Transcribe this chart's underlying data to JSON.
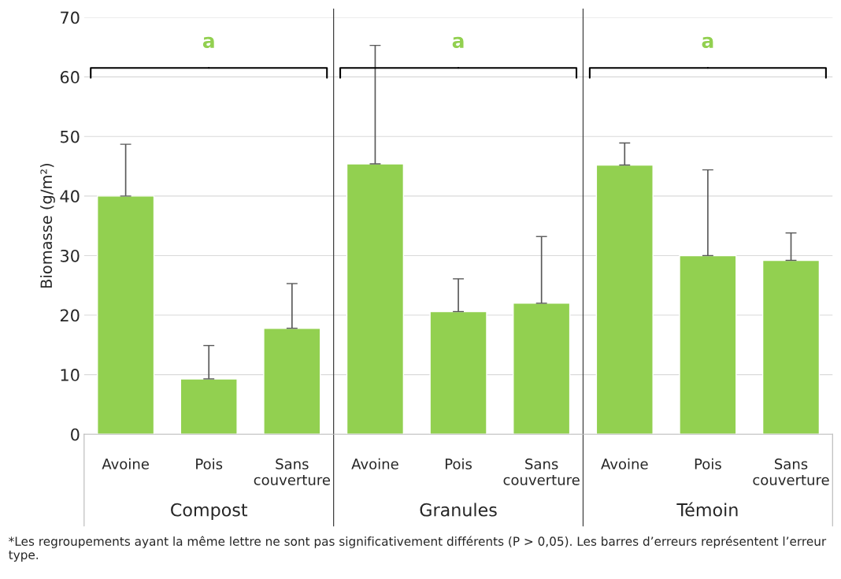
{
  "chart_data": {
    "type": "bar",
    "ylabel": "Biomasse (g/m²)",
    "categories": [
      "Avoine",
      "Pois",
      "Sans\ncouverture",
      "Avoine",
      "Pois",
      "Sans\ncouverture",
      "Avoine",
      "Pois",
      "Sans\ncouverture"
    ],
    "values": [
      40,
      9.3,
      17.8,
      45.4,
      20.6,
      22.0,
      45.2,
      30.0,
      29.2
    ],
    "errors": [
      [
        40,
        48.7
      ],
      [
        9.3,
        14.9
      ],
      [
        17.8,
        25.3
      ],
      [
        45.4,
        65.3
      ],
      [
        20.6,
        26.1
      ],
      [
        22.0,
        33.2
      ],
      [
        45.2,
        48.9
      ],
      [
        30.0,
        44.4
      ],
      [
        29.2,
        33.8
      ]
    ],
    "color": "#92d050",
    "ylim": [
      0,
      70
    ],
    "yticks": [
      0,
      10,
      20,
      30,
      40,
      50,
      60,
      70
    ],
    "grid": "y",
    "annotations": [
      "Compost",
      "Granules",
      "Témoin",
      "a",
      "a",
      "a",
      "*Les regroupements ayant la même lettre ne sont pas significativement différents (P > 0,05). Les barres d’erreurs représentent l’erreur type."
    ]
  }
}
